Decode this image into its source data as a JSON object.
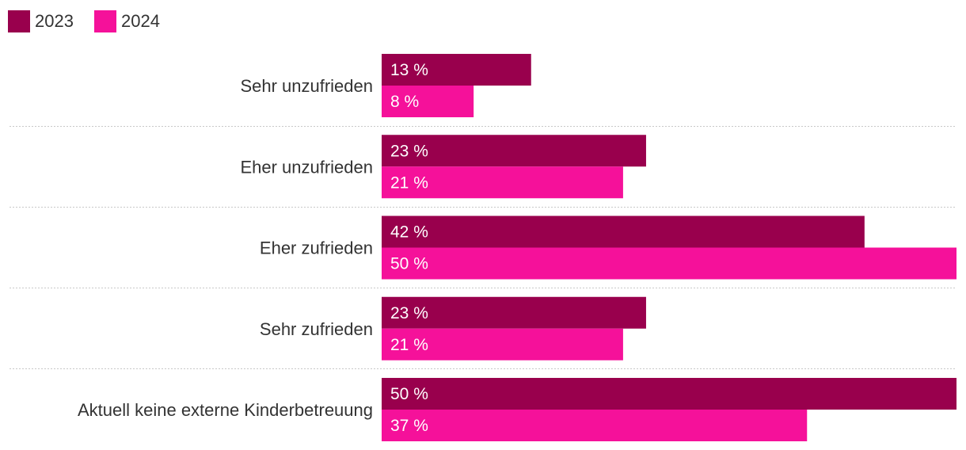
{
  "chart_data": {
    "type": "bar",
    "orientation": "horizontal",
    "title": "",
    "xlabel": "",
    "ylabel": "",
    "xlim": [
      0,
      50
    ],
    "grid": false,
    "legend_position": "top-left",
    "value_suffix": " %",
    "categories": [
      "Sehr unzufrieden",
      "Eher unzufrieden",
      "Eher zufrieden",
      "Sehr zufrieden",
      "Aktuell keine externe Kinderbetreuung"
    ],
    "series": [
      {
        "name": "2023",
        "color": "#99004d",
        "values": [
          13,
          23,
          42,
          23,
          50
        ]
      },
      {
        "name": "2024",
        "color": "#f5119a",
        "values": [
          8,
          21,
          50,
          21,
          37
        ]
      }
    ]
  }
}
